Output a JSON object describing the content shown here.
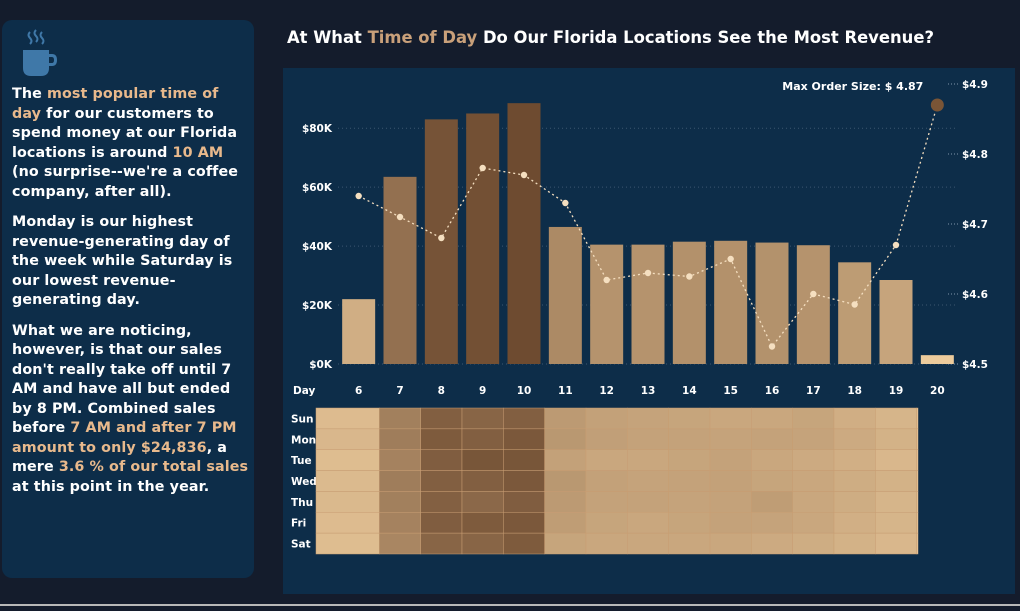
{
  "title": {
    "prefix": "At What ",
    "highlight": "Time of Day",
    "suffix": " Do Our Florida Locations See the Most Revenue?"
  },
  "story": {
    "p1": [
      {
        "t": "The ",
        "h": false
      },
      {
        "t": "most popular time of day",
        "h": true
      },
      {
        "t": " for our customers to spend money at our Florida locations is around ",
        "h": false
      },
      {
        "t": "10 AM",
        "h": true
      },
      {
        "t": " (no surprise--we're a coffee company, after all).",
        "h": false
      }
    ],
    "p2": [
      {
        "t": "Monday is our highest revenue-generating day of the week while Saturday is our lowest revenue-generating day.",
        "h": false
      }
    ],
    "p3": [
      {
        "t": "What we are noticing, however, is that our sales don't really take off until 7 AM and have all but ended by 8 PM.  Combined sales before ",
        "h": false
      },
      {
        "t": "7 AM and after 7 PM amount to only $24,836",
        "h": true
      },
      {
        "t": ", a mere ",
        "h": false
      },
      {
        "t": "3.6 % of our total sales",
        "h": true
      },
      {
        "t": " at this point in the year.",
        "h": false
      }
    ]
  },
  "colors": {
    "background": "#141c2c",
    "panel": "#0d2d49",
    "accent": "#e8b98c",
    "text": "#ffffff",
    "bar_light": "#f0cfa0",
    "bar_dark": "#6e4b30",
    "line": "#f5dfc0",
    "max_marker": "#7a5536"
  },
  "icons": [
    "coffee-cup-icon"
  ],
  "chart_data": {
    "type": "bar",
    "categories": [
      "6",
      "7",
      "8",
      "9",
      "10",
      "11",
      "12",
      "13",
      "14",
      "15",
      "16",
      "17",
      "18",
      "19",
      "20"
    ],
    "xlabel": "Day",
    "series": [
      {
        "name": "Revenue",
        "axis": "left",
        "values": [
          22000,
          63500,
          83000,
          85000,
          88500,
          46500,
          40500,
          40500,
          41500,
          41800,
          41200,
          40300,
          34500,
          28500,
          3000
        ]
      },
      {
        "name": "Max Order Size",
        "type": "line",
        "axis": "right",
        "values": [
          4.74,
          4.71,
          4.68,
          4.78,
          4.77,
          4.73,
          4.62,
          4.63,
          4.625,
          4.65,
          4.525,
          4.6,
          4.585,
          4.67,
          4.87
        ]
      }
    ],
    "y_ticks": [
      "$0K",
      "$20K",
      "$40K",
      "$60K",
      "$80K"
    ],
    "ylim": [
      0,
      95000
    ],
    "y2_ticks": [
      "$4.5",
      "$4.6",
      "$4.7",
      "$4.8",
      "$4.9"
    ],
    "y2lim": [
      4.5,
      4.9
    ],
    "annotation": "Max Order Size: $ 4.87",
    "heatmap": {
      "rows": [
        "Sun",
        "Mon",
        "Tue",
        "Wed",
        "Thu",
        "Fri",
        "Sat"
      ],
      "columns": [
        "6",
        "7",
        "8",
        "9",
        "10",
        "11",
        "12",
        "13",
        "14",
        "15",
        "16",
        "17",
        "18",
        "19",
        "20"
      ],
      "values": [
        [
          0.15,
          0.6,
          0.85,
          0.8,
          0.85,
          0.4,
          0.35,
          0.33,
          0.32,
          0.3,
          0.3,
          0.32,
          0.25,
          0.2,
          0.02
        ],
        [
          0.18,
          0.62,
          0.88,
          0.85,
          0.9,
          0.42,
          0.36,
          0.34,
          0.34,
          0.33,
          0.34,
          0.33,
          0.28,
          0.22,
          0.03
        ],
        [
          0.14,
          0.58,
          0.86,
          0.92,
          0.92,
          0.35,
          0.3,
          0.3,
          0.32,
          0.34,
          0.3,
          0.28,
          0.24,
          0.18,
          0.02
        ],
        [
          0.16,
          0.62,
          0.85,
          0.85,
          0.9,
          0.42,
          0.35,
          0.33,
          0.34,
          0.35,
          0.32,
          0.3,
          0.26,
          0.22,
          0.03
        ],
        [
          0.17,
          0.6,
          0.84,
          0.78,
          0.86,
          0.4,
          0.34,
          0.34,
          0.33,
          0.34,
          0.38,
          0.3,
          0.26,
          0.2,
          0.02
        ],
        [
          0.15,
          0.58,
          0.86,
          0.88,
          0.9,
          0.38,
          0.32,
          0.3,
          0.32,
          0.34,
          0.33,
          0.3,
          0.24,
          0.2,
          0.02
        ],
        [
          0.14,
          0.55,
          0.8,
          0.8,
          0.88,
          0.32,
          0.3,
          0.3,
          0.3,
          0.3,
          0.28,
          0.26,
          0.22,
          0.18,
          0.02
        ]
      ]
    }
  }
}
